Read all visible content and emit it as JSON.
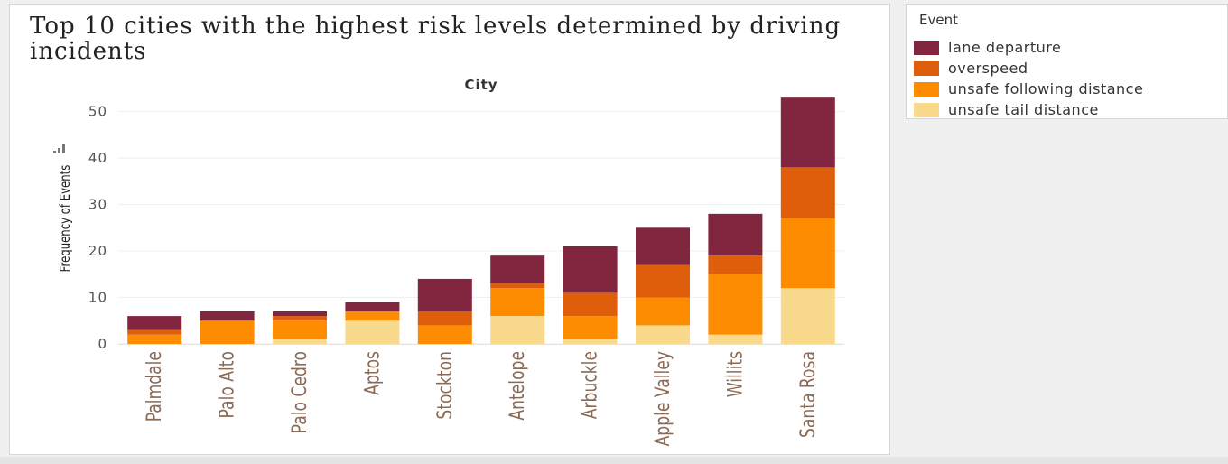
{
  "chart_data": {
    "type": "bar",
    "stacked": true,
    "title": "Top 10 cities with the highest risk levels determined by driving incidents",
    "column_header": "City",
    "xlabel": "",
    "ylabel": "Frequency of Events",
    "ylim": [
      0,
      54
    ],
    "yticks": [
      0,
      10,
      20,
      30,
      40,
      50
    ],
    "grid": true,
    "legend_title": "Event",
    "legend_position": "top-right",
    "categories": [
      "Palmdale",
      "Palo Alto",
      "Palo Cedro",
      "Aptos",
      "Stockton",
      "Antelope",
      "Arbuckle",
      "Apple Valley",
      "Willits",
      "Santa Rosa"
    ],
    "series": [
      {
        "name": "unsafe tail distance",
        "color": "#f9da8d",
        "values": [
          0,
          0,
          1,
          5,
          0,
          6,
          1,
          4,
          2,
          12
        ]
      },
      {
        "name": "unsafe following distance",
        "color": "#fe8c00",
        "values": [
          2,
          5,
          4,
          2,
          4,
          6,
          5,
          6,
          13,
          15
        ]
      },
      {
        "name": "overspeed",
        "color": "#de5e0b",
        "values": [
          1,
          0,
          1,
          0,
          3,
          1,
          5,
          7,
          4,
          11
        ]
      },
      {
        "name": "lane departure",
        "color": "#82253e",
        "values": [
          3,
          2,
          1,
          2,
          7,
          6,
          10,
          8,
          9,
          15
        ]
      }
    ]
  }
}
